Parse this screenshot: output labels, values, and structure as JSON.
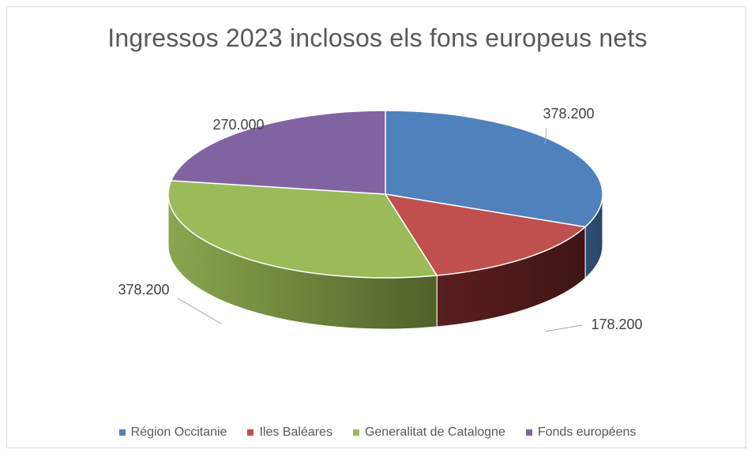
{
  "chart_data": {
    "type": "pie",
    "title": "Ingressos 2023 inclosos els fons europeus nets",
    "categories": [
      "Région Occitanie",
      "Iles Baléares",
      "Generalitat de Catalogne",
      "Fonds européens"
    ],
    "values": [
      378200,
      178200,
      378200,
      270000
    ],
    "data_labels": [
      "378.200",
      "178.200",
      "378.200",
      "270.000"
    ],
    "colors": [
      "#4f81bd",
      "#c0504d",
      "#9bbb59",
      "#8064a2"
    ],
    "style": "3d",
    "legend_position": "bottom"
  }
}
